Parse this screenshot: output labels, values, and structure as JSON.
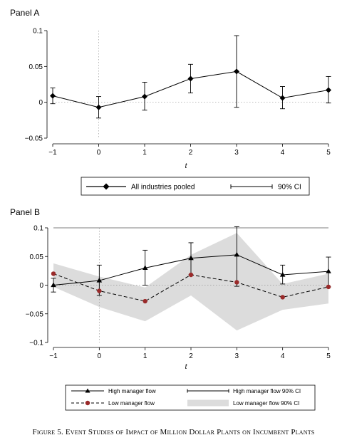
{
  "caption": "Figure 5. Event Studies of Impact of Million Dollar Plants on Incumbent Plants",
  "chart_data": [
    {
      "type": "line",
      "title": "Panel A",
      "xlabel": "t",
      "ylabel": "",
      "x": [
        -1,
        0,
        1,
        2,
        3,
        4,
        5
      ],
      "xticks": [
        "−1",
        "0",
        "1",
        "2",
        "3",
        "4",
        "5"
      ],
      "yticks": [
        -0.05,
        0,
        0.05,
        0.1
      ],
      "ytick_labels": [
        "−0.05",
        "0",
        "0.05",
        "0.1"
      ],
      "ylim": [
        -0.05,
        0.1
      ],
      "series": [
        {
          "name": "All industries pooled",
          "values": [
            0.009,
            -0.007,
            0.008,
            0.033,
            0.043,
            0.006,
            0.017
          ],
          "ci_low": [
            -0.002,
            -0.022,
            -0.011,
            0.013,
            -0.007,
            -0.009,
            -0.001
          ],
          "ci_high": [
            0.02,
            0.008,
            0.028,
            0.053,
            0.093,
            0.022,
            0.036
          ]
        }
      ],
      "legend": {
        "position": "bottom",
        "entries": [
          "All industries pooled",
          "90% CI"
        ]
      }
    },
    {
      "type": "line",
      "title": "Panel B",
      "xlabel": "t",
      "ylabel": "",
      "x": [
        -1,
        0,
        1,
        2,
        3,
        4,
        5
      ],
      "xticks": [
        "−1",
        "0",
        "1",
        "2",
        "3",
        "4",
        "5"
      ],
      "yticks": [
        -0.1,
        -0.05,
        0,
        0.05,
        0.1
      ],
      "ytick_labels": [
        "−0.1",
        "−0.05",
        "0",
        "0.05",
        "0.1"
      ],
      "ylim": [
        -0.1,
        0.1
      ],
      "series": [
        {
          "name": "High manager flow",
          "values": [
            0.0,
            0.008,
            0.03,
            0.047,
            0.053,
            0.018,
            0.024
          ],
          "ci_low": [
            -0.012,
            -0.018,
            0.0,
            0.018,
            -0.002,
            0.002,
            -0.003
          ],
          "ci_high": [
            0.012,
            0.035,
            0.061,
            0.074,
            0.102,
            0.035,
            0.049
          ]
        },
        {
          "name": "Low manager flow",
          "values": [
            0.02,
            -0.01,
            -0.028,
            0.018,
            0.005,
            -0.021,
            -0.003
          ],
          "ci_low": [
            -0.003,
            -0.038,
            -0.063,
            -0.018,
            -0.079,
            -0.043,
            -0.032
          ],
          "ci_high": [
            0.038,
            0.015,
            -0.004,
            0.053,
            0.091,
            0.002,
            0.02
          ]
        }
      ],
      "legend": {
        "position": "bottom",
        "entries": [
          "High manager flow",
          "High manager flow 90% CI",
          "Low manager flow",
          "Low manager flow 90% CI"
        ]
      }
    }
  ]
}
